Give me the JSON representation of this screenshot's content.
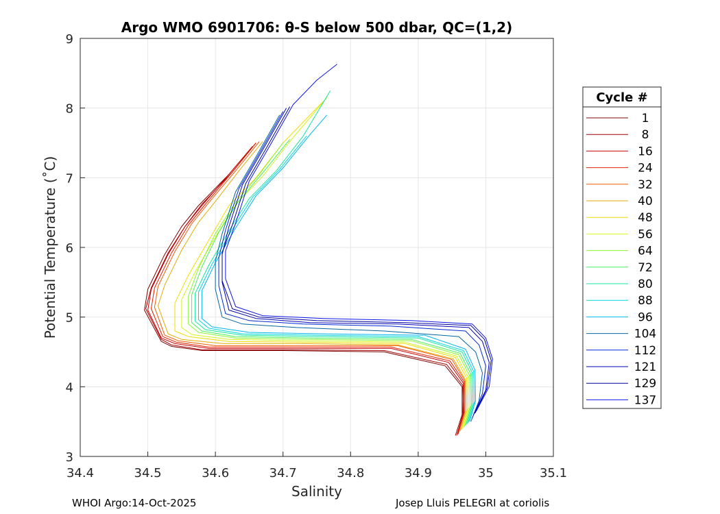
{
  "chart_data": {
    "type": "line",
    "title": "Argo WMO 6901706: θ-S below 500 dbar,  QC=(1,2)",
    "xlabel": "Salinity",
    "ylabel": "Potential Temperature (˚C)",
    "xlim": [
      34.4,
      35.1
    ],
    "ylim": [
      3,
      9
    ],
    "xticks": [
      "34.4",
      "34.5",
      "34.6",
      "34.7",
      "34.8",
      "34.9",
      "35",
      "35.1"
    ],
    "yticks": [
      "3",
      "4",
      "5",
      "6",
      "7",
      "8",
      "9"
    ],
    "grid": true,
    "legend": {
      "title": "Cycle #",
      "placement": "outside-right",
      "entries": [
        {
          "label": "1",
          "color": "#800000"
        },
        {
          "label": "8",
          "color": "#a00000"
        },
        {
          "label": "16",
          "color": "#c80000"
        },
        {
          "label": "24",
          "color": "#e61e00"
        },
        {
          "label": "32",
          "color": "#f55a00"
        },
        {
          "label": "40",
          "color": "#e6aa00"
        },
        {
          "label": "48",
          "color": "#f0dc00"
        },
        {
          "label": "56",
          "color": "#d2f514"
        },
        {
          "label": "64",
          "color": "#8cf532"
        },
        {
          "label": "72",
          "color": "#46f05a"
        },
        {
          "label": "80",
          "color": "#14e6a0"
        },
        {
          "label": "88",
          "color": "#00d7dc"
        },
        {
          "label": "96",
          "color": "#00b4f0"
        },
        {
          "label": "104",
          "color": "#0064a0"
        },
        {
          "label": "112",
          "color": "#0028d2"
        },
        {
          "label": "121",
          "color": "#0000b4"
        },
        {
          "label": "129",
          "color": "#000096"
        },
        {
          "label": "137",
          "color": "#0a14e6"
        }
      ]
    },
    "series": [
      {
        "name": "1",
        "color": "#800000",
        "s": [
          34.955,
          34.965,
          34.965,
          34.94,
          34.85,
          34.7,
          34.58,
          34.535,
          34.52,
          34.495,
          34.5,
          34.525,
          34.55,
          34.575,
          34.62,
          34.655
        ],
        "t": [
          3.3,
          3.6,
          4.0,
          4.3,
          4.5,
          4.52,
          4.52,
          4.58,
          4.65,
          5.1,
          5.4,
          5.9,
          6.3,
          6.6,
          7.05,
          7.45
        ]
      },
      {
        "name": "8",
        "color": "#a00000",
        "s": [
          34.958,
          34.967,
          34.966,
          34.942,
          34.85,
          34.7,
          34.58,
          34.535,
          34.52,
          34.497,
          34.505,
          34.53,
          34.555,
          34.58,
          34.625,
          34.66
        ],
        "t": [
          3.32,
          3.62,
          4.02,
          4.32,
          4.52,
          4.53,
          4.53,
          4.6,
          4.68,
          5.12,
          5.42,
          5.92,
          6.3,
          6.62,
          7.08,
          7.5
        ]
      },
      {
        "name": "16",
        "color": "#c80000",
        "s": [
          34.957,
          34.966,
          34.967,
          34.945,
          34.86,
          34.71,
          34.59,
          34.54,
          34.52,
          34.5,
          34.505,
          34.53,
          34.555,
          34.58,
          34.62,
          34.655
        ],
        "t": [
          3.3,
          3.6,
          4.05,
          4.35,
          4.55,
          4.55,
          4.55,
          4.62,
          4.7,
          5.1,
          5.4,
          5.9,
          6.3,
          6.6,
          7.05,
          7.45
        ]
      },
      {
        "name": "24",
        "color": "#e61e00",
        "s": [
          34.959,
          34.968,
          34.968,
          34.947,
          34.86,
          34.71,
          34.59,
          34.542,
          34.522,
          34.505,
          34.51,
          34.535,
          34.56,
          34.585,
          34.625,
          34.66
        ],
        "t": [
          3.32,
          3.62,
          4.07,
          4.37,
          4.57,
          4.57,
          4.57,
          4.64,
          4.72,
          5.12,
          5.42,
          5.92,
          6.32,
          6.62,
          7.08,
          7.5
        ]
      },
      {
        "name": "32",
        "color": "#f55a00",
        "s": [
          34.96,
          34.969,
          34.969,
          34.95,
          34.87,
          34.72,
          34.6,
          34.545,
          34.525,
          34.51,
          34.515,
          34.54,
          34.565,
          34.59,
          34.63,
          34.665
        ],
        "t": [
          3.34,
          3.64,
          4.09,
          4.39,
          4.59,
          4.59,
          4.59,
          4.66,
          4.74,
          5.14,
          5.44,
          5.94,
          6.34,
          6.64,
          7.1,
          7.52
        ]
      },
      {
        "name": "40",
        "color": "#e6aa00",
        "s": [
          34.962,
          34.971,
          34.97,
          34.952,
          34.87,
          34.72,
          34.61,
          34.55,
          34.53,
          34.515,
          34.525,
          34.55,
          34.575,
          34.6,
          34.635,
          34.67
        ],
        "t": [
          3.36,
          3.66,
          4.1,
          4.4,
          4.6,
          4.62,
          4.62,
          4.68,
          4.76,
          5.16,
          5.46,
          5.96,
          6.36,
          6.66,
          7.1,
          7.52
        ]
      },
      {
        "name": "48",
        "color": "#f0dc00",
        "s": [
          34.964,
          34.973,
          34.972,
          34.955,
          34.88,
          34.73,
          34.62,
          34.56,
          34.54,
          34.54,
          34.56,
          34.59,
          34.62,
          34.66,
          34.7,
          34.76
        ],
        "t": [
          3.38,
          3.68,
          4.12,
          4.42,
          4.62,
          4.64,
          4.65,
          4.72,
          4.8,
          5.2,
          5.6,
          6.1,
          6.6,
          7.0,
          7.5,
          8.1
        ]
      },
      {
        "name": "56",
        "color": "#d2f514",
        "s": [
          34.966,
          34.975,
          34.974,
          34.957,
          34.88,
          34.73,
          34.62,
          34.565,
          34.55,
          34.55,
          34.57,
          34.6,
          34.63,
          34.67,
          34.71,
          34.765
        ],
        "t": [
          3.4,
          3.7,
          4.14,
          4.44,
          4.64,
          4.66,
          4.68,
          4.75,
          4.85,
          5.25,
          5.65,
          6.15,
          6.62,
          7.02,
          7.52,
          8.15
        ]
      },
      {
        "name": "64",
        "color": "#8cf532",
        "s": [
          34.968,
          34.977,
          34.976,
          34.96,
          34.89,
          34.74,
          34.63,
          34.575,
          34.56,
          34.56,
          34.575,
          34.6,
          34.63,
          34.665,
          34.7
        ],
        "t": [
          3.42,
          3.72,
          4.16,
          4.46,
          4.66,
          4.68,
          4.7,
          4.78,
          4.9,
          5.3,
          5.7,
          6.2,
          6.65,
          7.05,
          7.5
        ]
      },
      {
        "name": "72",
        "color": "#46f05a",
        "s": [
          34.97,
          34.979,
          34.978,
          34.962,
          34.89,
          34.74,
          34.63,
          34.58,
          34.565,
          34.565,
          34.58,
          34.605,
          34.635,
          34.67,
          34.71
        ],
        "t": [
          3.44,
          3.74,
          4.18,
          4.48,
          4.68,
          4.7,
          4.72,
          4.8,
          4.92,
          5.32,
          5.72,
          6.22,
          6.67,
          7.07,
          7.55
        ]
      },
      {
        "name": "80",
        "color": "#14e6a0",
        "s": [
          34.972,
          34.981,
          34.98,
          34.965,
          34.9,
          34.75,
          34.64,
          34.585,
          34.57,
          34.57,
          34.59,
          34.62,
          34.65,
          34.69,
          34.73,
          34.77
        ],
        "t": [
          3.46,
          3.76,
          4.2,
          4.5,
          4.7,
          4.72,
          4.74,
          4.82,
          4.94,
          5.34,
          5.74,
          6.24,
          6.7,
          7.1,
          7.6,
          8.25
        ]
      },
      {
        "name": "88",
        "color": "#00d7dc",
        "s": [
          34.974,
          34.983,
          34.982,
          34.967,
          34.9,
          34.75,
          34.64,
          34.59,
          34.575,
          34.575,
          34.595,
          34.625,
          34.655,
          34.695,
          34.735
        ],
        "t": [
          3.48,
          3.78,
          4.22,
          4.52,
          4.72,
          4.74,
          4.76,
          4.84,
          4.96,
          5.36,
          5.76,
          6.26,
          6.72,
          7.12,
          7.6
        ]
      },
      {
        "name": "96",
        "color": "#00b4f0",
        "s": [
          34.976,
          34.985,
          34.984,
          34.97,
          34.91,
          34.76,
          34.65,
          34.595,
          34.58,
          34.58,
          34.6,
          34.63,
          34.66,
          34.7,
          34.74,
          34.765
        ],
        "t": [
          3.5,
          3.8,
          4.24,
          4.54,
          4.74,
          4.76,
          4.78,
          4.86,
          4.98,
          5.38,
          5.78,
          6.28,
          6.74,
          7.14,
          7.62,
          7.9
        ]
      },
      {
        "name": "104",
        "color": "#0064a0",
        "s": [
          34.978,
          34.99,
          34.995,
          34.985,
          34.96,
          34.85,
          34.72,
          34.64,
          34.61,
          34.6,
          34.6,
          34.61,
          34.63,
          34.66,
          34.695
        ],
        "t": [
          3.5,
          3.8,
          4.2,
          4.5,
          4.72,
          4.8,
          4.85,
          4.9,
          5.0,
          5.4,
          5.8,
          6.2,
          6.8,
          7.3,
          7.9
        ]
      },
      {
        "name": "112",
        "color": "#0028d2",
        "s": [
          34.98,
          34.995,
          35.0,
          34.99,
          34.97,
          34.86,
          34.73,
          34.65,
          34.615,
          34.605,
          34.605,
          34.615,
          34.635,
          34.665,
          34.7
        ],
        "t": [
          3.55,
          3.9,
          4.3,
          4.6,
          4.8,
          4.87,
          4.9,
          4.95,
          5.05,
          5.45,
          5.85,
          6.25,
          6.85,
          7.35,
          7.95
        ]
      },
      {
        "name": "121",
        "color": "#0000b4",
        "s": [
          34.982,
          35.0,
          35.005,
          34.995,
          34.975,
          34.87,
          34.74,
          34.66,
          34.62,
          34.61,
          34.61,
          34.62,
          34.64,
          34.67,
          34.705
        ],
        "t": [
          3.6,
          3.95,
          4.35,
          4.65,
          4.85,
          4.9,
          4.92,
          4.98,
          5.1,
          5.5,
          5.9,
          6.3,
          6.9,
          7.4,
          8.0
        ]
      },
      {
        "name": "129",
        "color": "#000096",
        "s": [
          34.984,
          35.002,
          35.008,
          34.998,
          34.978,
          34.88,
          34.75,
          34.665,
          34.625,
          34.61,
          34.61,
          34.625,
          34.645,
          34.675,
          34.71
        ],
        "t": [
          3.62,
          3.98,
          4.38,
          4.68,
          4.88,
          4.92,
          4.95,
          5.0,
          5.12,
          5.52,
          5.92,
          6.32,
          6.92,
          7.42,
          8.02
        ]
      },
      {
        "name": "137",
        "color": "#0a14e6",
        "s": [
          34.986,
          35.005,
          35.01,
          35.0,
          34.98,
          34.89,
          34.76,
          34.67,
          34.63,
          34.615,
          34.615,
          34.63,
          34.65,
          34.68,
          34.715,
          34.75,
          34.78
        ],
        "t": [
          3.65,
          4.0,
          4.4,
          4.7,
          4.9,
          4.95,
          4.98,
          5.02,
          5.15,
          5.55,
          5.95,
          6.35,
          6.95,
          7.45,
          8.05,
          8.4,
          8.63
        ]
      }
    ]
  },
  "footer": {
    "left": "WHOI Argo:14-Oct-2025",
    "right": "Josep Lluis PELEGRI at coriolis"
  }
}
